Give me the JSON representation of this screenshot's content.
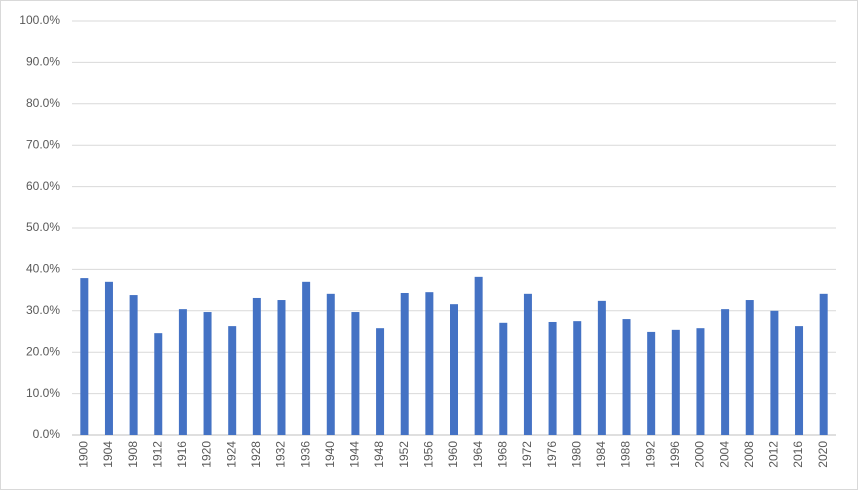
{
  "chart_data": {
    "type": "bar",
    "categories": [
      "1900",
      "1904",
      "1908",
      "1912",
      "1916",
      "1920",
      "1924",
      "1928",
      "1932",
      "1936",
      "1940",
      "1944",
      "1948",
      "1952",
      "1956",
      "1960",
      "1964",
      "1968",
      "1972",
      "1976",
      "1980",
      "1984",
      "1988",
      "1992",
      "1996",
      "2000",
      "2004",
      "2008",
      "2012",
      "2016",
      "2020"
    ],
    "values": [
      37.9,
      37.0,
      33.8,
      24.6,
      30.4,
      29.7,
      26.3,
      33.1,
      32.6,
      37.0,
      34.1,
      29.7,
      25.8,
      34.3,
      34.5,
      31.6,
      38.2,
      27.1,
      34.1,
      27.3,
      27.5,
      32.4,
      28.0,
      24.9,
      25.4,
      25.8,
      30.4,
      32.6,
      30.0,
      26.3,
      34.1
    ],
    "color": "#4472c4",
    "ylim": [
      0,
      100
    ],
    "yticks": [
      {
        "value": 0,
        "label": "0.0%"
      },
      {
        "value": 10,
        "label": "10.0%"
      },
      {
        "value": 20,
        "label": "20.0%"
      },
      {
        "value": 30,
        "label": "30.0%"
      },
      {
        "value": 40,
        "label": "40.0%"
      },
      {
        "value": 50,
        "label": "50.0%"
      },
      {
        "value": 60,
        "label": "60.0%"
      },
      {
        "value": 70,
        "label": "70.0%"
      },
      {
        "value": 80,
        "label": "80.0%"
      },
      {
        "value": 90,
        "label": "90.0%"
      },
      {
        "value": 100,
        "label": "100.0%"
      }
    ],
    "grid": true
  }
}
